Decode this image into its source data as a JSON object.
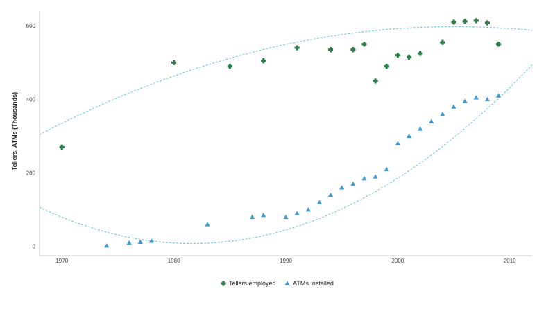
{
  "chart_data": {
    "type": "scatter",
    "title": "",
    "xlabel": "",
    "ylabel": "Tellers, ATMs (Thousands)",
    "xlim": [
      1968,
      2012
    ],
    "ylim": [
      -25,
      640
    ],
    "x_ticks": [
      1970,
      1980,
      1990,
      2000,
      2010
    ],
    "y_ticks": [
      0,
      200,
      400,
      600
    ],
    "grid": false,
    "legend_position": "bottom-center",
    "colors": {
      "tellers": "#2e7d4f",
      "atms": "#3d9bd1",
      "trend": "#7fc9d6",
      "axis": "#cccccc"
    },
    "series": [
      {
        "key": "tellers",
        "name": "Tellers employed",
        "marker": "plus",
        "points": [
          [
            1970,
            270
          ],
          [
            1980,
            500
          ],
          [
            1985,
            490
          ],
          [
            1988,
            505
          ],
          [
            1991,
            540
          ],
          [
            1994,
            535
          ],
          [
            1996,
            535
          ],
          [
            1997,
            550
          ],
          [
            1998,
            450
          ],
          [
            1999,
            490
          ],
          [
            2000,
            520
          ],
          [
            2001,
            515
          ],
          [
            2002,
            525
          ],
          [
            2004,
            555
          ],
          [
            2005,
            610
          ],
          [
            2006,
            612
          ],
          [
            2007,
            614
          ],
          [
            2008,
            608
          ],
          [
            2009,
            550
          ]
        ],
        "trend": {
          "type": "quadratic",
          "coef": [
            -0.2137,
            19.26,
            163.8
          ],
          "x_ref": 1960
        }
      },
      {
        "key": "atms",
        "name": "ATMs Installed",
        "marker": "triangle",
        "points": [
          [
            1974,
            2
          ],
          [
            1976,
            10
          ],
          [
            1977,
            12
          ],
          [
            1978,
            15
          ],
          [
            1983,
            60
          ],
          [
            1987,
            80
          ],
          [
            1988,
            85
          ],
          [
            1990,
            80
          ],
          [
            1991,
            90
          ],
          [
            1992,
            100
          ],
          [
            1993,
            120
          ],
          [
            1994,
            140
          ],
          [
            1995,
            160
          ],
          [
            1996,
            170
          ],
          [
            1997,
            185
          ],
          [
            1998,
            190
          ],
          [
            1999,
            210
          ],
          [
            2000,
            280
          ],
          [
            2001,
            300
          ],
          [
            2002,
            320
          ],
          [
            2003,
            340
          ],
          [
            2004,
            360
          ],
          [
            2005,
            380
          ],
          [
            2006,
            395
          ],
          [
            2007,
            405
          ],
          [
            2008,
            400
          ],
          [
            2009,
            410
          ]
        ],
        "trend": {
          "type": "quadratic",
          "coef": [
            0.5278,
            -22.85,
            255.3
          ],
          "x_ref": 1960
        }
      }
    ]
  }
}
